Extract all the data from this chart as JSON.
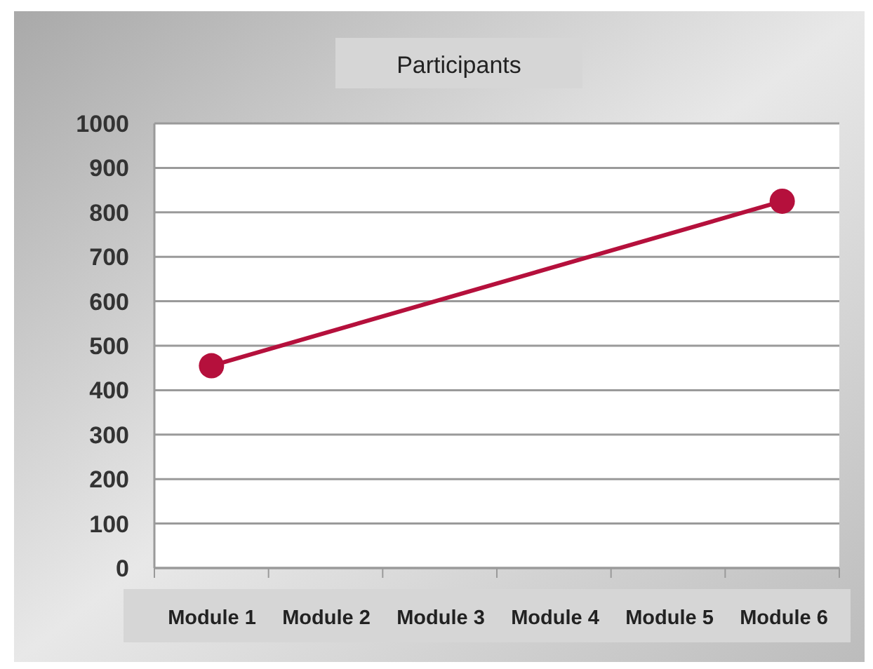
{
  "chart_data": {
    "type": "line",
    "title": "Participants",
    "categories": [
      "Module 1",
      "Module 2",
      "Module 3",
      "Module 4",
      "Module 5",
      "Module 6"
    ],
    "series": [
      {
        "color": "#b5103c",
        "values": [
          455,
          null,
          null,
          null,
          null,
          825
        ]
      }
    ],
    "ylim": [
      0,
      1000
    ],
    "yticks": [
      0,
      100,
      200,
      300,
      400,
      500,
      600,
      700,
      800,
      900,
      1000
    ],
    "grid": "y",
    "marker": "circle",
    "line_style": "solid"
  }
}
